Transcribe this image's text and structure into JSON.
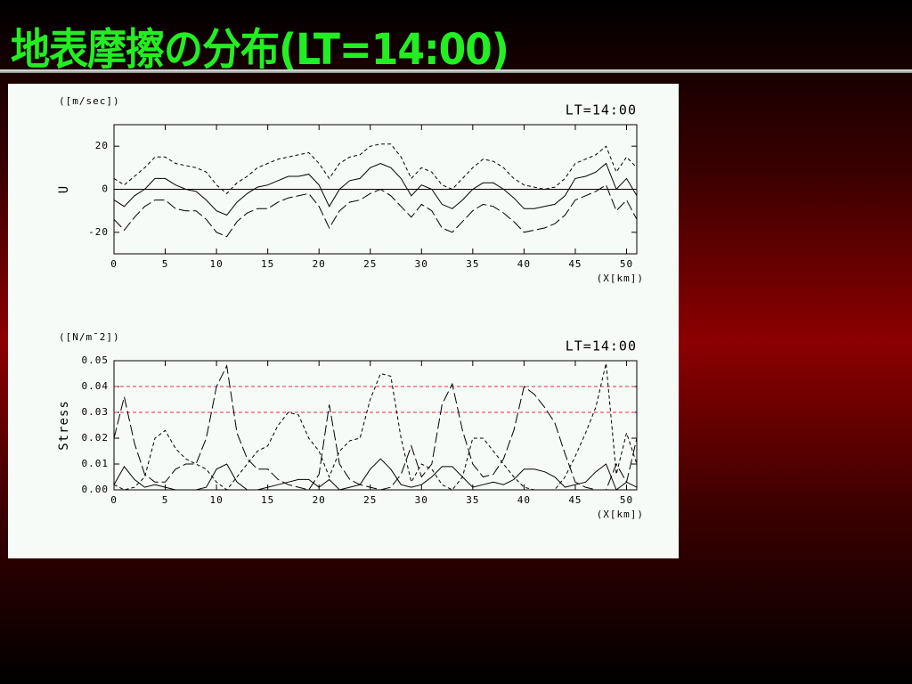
{
  "slide": {
    "title": "地表摩擦の分布(LT=14:00)"
  },
  "chart_data": [
    {
      "type": "line",
      "title": "LT=14:00",
      "units": "([m/sec])",
      "ylabel": "U",
      "xlabel": "(X[km])",
      "x": [
        0,
        1,
        2,
        3,
        4,
        5,
        6,
        7,
        8,
        9,
        10,
        11,
        12,
        13,
        14,
        15,
        16,
        17,
        18,
        19,
        20,
        21,
        22,
        23,
        24,
        25,
        26,
        27,
        28,
        29,
        30,
        31,
        32,
        33,
        34,
        35,
        36,
        37,
        38,
        39,
        40,
        41,
        42,
        43,
        44,
        45,
        46,
        47,
        48,
        49,
        50,
        51
      ],
      "xlim": [
        0,
        51
      ],
      "ylim": [
        -30,
        30
      ],
      "xticks": [
        0,
        5,
        10,
        15,
        20,
        25,
        30,
        35,
        40,
        45,
        50
      ],
      "yticks": [
        -20,
        0,
        20
      ],
      "zero_line": true,
      "series": [
        {
          "color": "#000000",
          "dash": "dashed",
          "values": [
            5,
            2,
            6,
            10,
            15,
            15,
            12,
            11,
            10,
            8,
            2,
            -2,
            3,
            6,
            10,
            12,
            14,
            15,
            16,
            17,
            12,
            5,
            12,
            15,
            16,
            20,
            21,
            21,
            15,
            5,
            10,
            8,
            2,
            0,
            5,
            10,
            14,
            13,
            10,
            5,
            2,
            1,
            0,
            1,
            5,
            12,
            14,
            16,
            20,
            8,
            15,
            10
          ]
        },
        {
          "color": "#000000",
          "dash": "solid",
          "values": [
            -5,
            -8,
            -3,
            0,
            5,
            5,
            2,
            0,
            -1,
            -5,
            -10,
            -12,
            -6,
            -2,
            1,
            2,
            4,
            6,
            6,
            7,
            2,
            -8,
            0,
            4,
            5,
            10,
            12,
            10,
            5,
            -3,
            2,
            0,
            -7,
            -9,
            -5,
            0,
            3,
            3,
            0,
            -4,
            -9,
            -9,
            -8,
            -7,
            -3,
            5,
            6,
            8,
            12,
            0,
            5,
            -3
          ]
        },
        {
          "color": "#000000",
          "dash": "long-dashed",
          "values": [
            -14,
            -19,
            -13,
            -8,
            -5,
            -5,
            -9,
            -10,
            -10,
            -14,
            -20,
            -22,
            -15,
            -11,
            -9,
            -9,
            -6,
            -4,
            -3,
            -2,
            -8,
            -18,
            -10,
            -6,
            -5,
            -2,
            0,
            -3,
            -8,
            -13,
            -7,
            -10,
            -18,
            -20,
            -15,
            -10,
            -7,
            -8,
            -11,
            -15,
            -20,
            -19,
            -18,
            -16,
            -12,
            -5,
            -3,
            -1,
            2,
            -10,
            -5,
            -14
          ]
        }
      ]
    },
    {
      "type": "line",
      "title": "LT=14:00",
      "units": "([N/m¯2])",
      "ylabel": "Stress",
      "xlabel": "(X[km])",
      "x": [
        0,
        1,
        2,
        3,
        4,
        5,
        6,
        7,
        8,
        9,
        10,
        11,
        12,
        13,
        14,
        15,
        16,
        17,
        18,
        19,
        20,
        21,
        22,
        23,
        24,
        25,
        26,
        27,
        28,
        29,
        30,
        31,
        32,
        33,
        34,
        35,
        36,
        37,
        38,
        39,
        40,
        41,
        42,
        43,
        44,
        45,
        46,
        47,
        48,
        49,
        50,
        51
      ],
      "xlim": [
        0,
        51
      ],
      "ylim": [
        0,
        0.05
      ],
      "xticks": [
        0,
        5,
        10,
        15,
        20,
        25,
        30,
        35,
        40,
        45,
        50
      ],
      "yticks": [
        {
          "value": 0,
          "label": "0.00"
        },
        0.01,
        0.02,
        0.03,
        0.04,
        0.05
      ],
      "hlines": [
        0.03,
        0.04
      ],
      "hline_color": "#e03030",
      "series": [
        {
          "color": "#000000",
          "dash": "solid",
          "values": [
            0.002,
            0.009,
            0.004,
            0.001,
            0.002,
            0.001,
            0,
            0,
            0,
            0.001,
            0.008,
            0.01,
            0.003,
            0,
            0,
            0.001,
            0.002,
            0.003,
            0.004,
            0.004,
            0.001,
            0.004,
            0,
            0.001,
            0.002,
            0.008,
            0.012,
            0.008,
            0.002,
            0.001,
            0.002,
            0.005,
            0.009,
            0.009,
            0.005,
            0.001,
            0.002,
            0.003,
            0.002,
            0.004,
            0.008,
            0.008,
            0.007,
            0.005,
            0.001,
            0.002,
            0.003,
            0.007,
            0.01,
            0,
            0.003,
            0.001
          ]
        },
        {
          "color": "#000000",
          "dash": "dashed",
          "values": [
            0.002,
            0,
            0.001,
            0.005,
            0.02,
            0.023,
            0.016,
            0.012,
            0.01,
            0.008,
            0.003,
            0,
            0.005,
            0.01,
            0.015,
            0.017,
            0.025,
            0.03,
            0.029,
            0.02,
            0.015,
            0.005,
            0.015,
            0.019,
            0.02,
            0.035,
            0.045,
            0.044,
            0.02,
            0.003,
            0.01,
            0.008,
            0.002,
            0,
            0.005,
            0.02,
            0.02,
            0.015,
            0.01,
            0.005,
            0.001,
            0,
            0,
            0,
            0.005,
            0.013,
            0.022,
            0.032,
            0.049,
            0.006,
            0.022,
            0.01
          ]
        },
        {
          "color": "#000000",
          "dash": "long-dashed",
          "values": [
            0.02,
            0.036,
            0.018,
            0.006,
            0.003,
            0.003,
            0.008,
            0.01,
            0.01,
            0.02,
            0.04,
            0.048,
            0.022,
            0.012,
            0.008,
            0.008,
            0.004,
            0.002,
            0.001,
            0,
            0.006,
            0.033,
            0.01,
            0.004,
            0.002,
            0.001,
            0,
            0.001,
            0.006,
            0.017,
            0.005,
            0.01,
            0.033,
            0.041,
            0.023,
            0.01,
            0.005,
            0.006,
            0.012,
            0.023,
            0.04,
            0.037,
            0.032,
            0.026,
            0.014,
            0.003,
            0.001,
            0,
            0,
            0.01,
            0.003,
            0.02
          ]
        }
      ]
    }
  ]
}
